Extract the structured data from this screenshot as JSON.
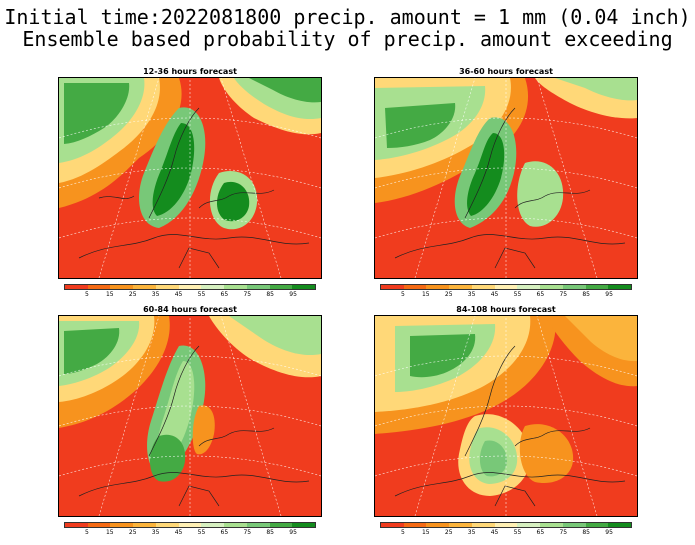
{
  "title_line1": "Initial time:2022081800 precip. amount = 1 mm (0.04 inch)",
  "title_line2": "Ensemble based probability of precip. amount exceeding",
  "panels": [
    {
      "title": "12-36 hours forecast"
    },
    {
      "title": "36-60 hours forecast"
    },
    {
      "title": "60-84 hours forecast"
    },
    {
      "title": "84-108 hours forecast"
    }
  ],
  "colorbar": {
    "colors": [
      "#f03c1e",
      "#f56a14",
      "#f7931e",
      "#fbb43c",
      "#ffd878",
      "#fff0b4",
      "#d6f0c0",
      "#a8e090",
      "#78c878",
      "#44aa44",
      "#148c1e"
    ],
    "labels": [
      "5",
      "15",
      "25",
      "35",
      "45",
      "55",
      "65",
      "75",
      "85",
      "95"
    ]
  },
  "colors": {
    "land_base": "#f03c1e",
    "high_prob": "#148c1e"
  }
}
